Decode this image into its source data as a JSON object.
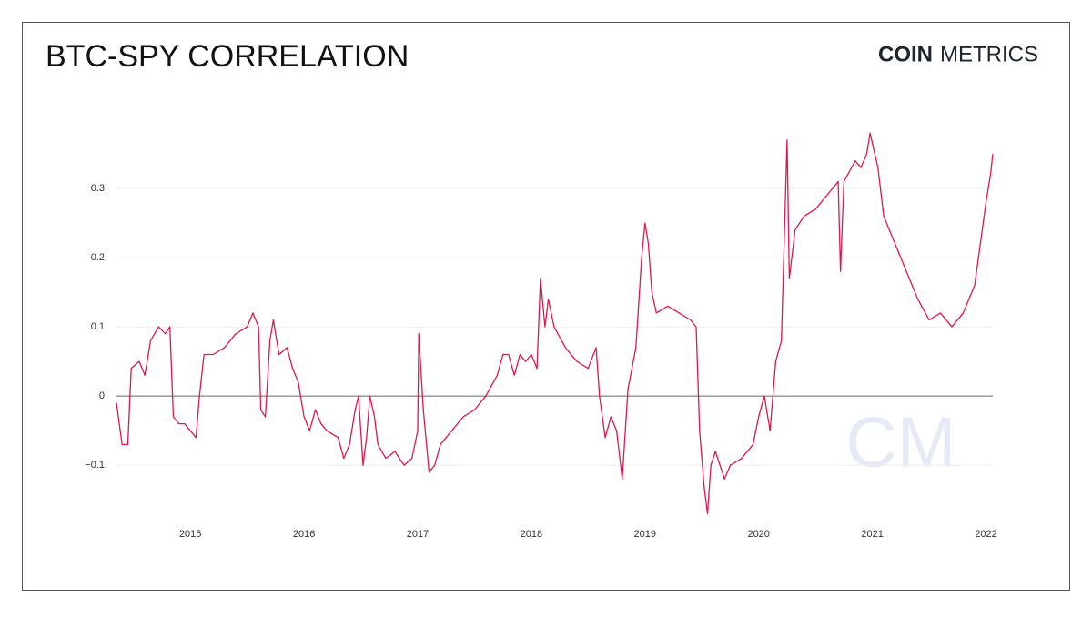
{
  "brand": {
    "bold": "COIN",
    "light": "METRICS",
    "watermark": "CM"
  },
  "chart_data": {
    "type": "line",
    "title": "BTC-SPY CORRELATION",
    "x": [
      2014.35,
      2014.4,
      2014.45,
      2014.48,
      2014.55,
      2014.6,
      2014.65,
      2014.72,
      2014.78,
      2014.82,
      2014.85,
      2014.9,
      2014.95,
      2015.0,
      2015.05,
      2015.08,
      2015.12,
      2015.2,
      2015.3,
      2015.4,
      2015.5,
      2015.55,
      2015.6,
      2015.62,
      2015.66,
      2015.7,
      2015.73,
      2015.78,
      2015.85,
      2015.9,
      2015.95,
      2016.0,
      2016.05,
      2016.1,
      2016.15,
      2016.2,
      2016.3,
      2016.35,
      2016.4,
      2016.45,
      2016.48,
      2016.52,
      2016.55,
      2016.58,
      2016.62,
      2016.65,
      2016.72,
      2016.8,
      2016.88,
      2016.95,
      2017.0,
      2017.01,
      2017.05,
      2017.1,
      2017.15,
      2017.2,
      2017.3,
      2017.4,
      2017.5,
      2017.6,
      2017.7,
      2017.75,
      2017.8,
      2017.85,
      2017.9,
      2017.95,
      2018.0,
      2018.05,
      2018.08,
      2018.12,
      2018.15,
      2018.2,
      2018.3,
      2018.4,
      2018.5,
      2018.57,
      2018.6,
      2018.65,
      2018.7,
      2018.75,
      2018.8,
      2018.85,
      2018.92,
      2018.97,
      2019.0,
      2019.03,
      2019.06,
      2019.1,
      2019.2,
      2019.3,
      2019.4,
      2019.45,
      2019.48,
      2019.52,
      2019.55,
      2019.58,
      2019.62,
      2019.7,
      2019.75,
      2019.85,
      2019.95,
      2020.0,
      2020.05,
      2020.1,
      2020.15,
      2020.2,
      2020.25,
      2020.27,
      2020.32,
      2020.4,
      2020.5,
      2020.6,
      2020.7,
      2020.72,
      2020.75,
      2020.85,
      2020.9,
      2020.95,
      2020.98,
      2021.05,
      2021.1,
      2021.2,
      2021.3,
      2021.4,
      2021.5,
      2021.6,
      2021.7,
      2021.8,
      2021.9,
      2021.95,
      2022.0,
      2022.04,
      2022.06
    ],
    "series": [
      {
        "color": "#e3154c",
        "values": [
          -0.01,
          -0.07,
          -0.07,
          0.04,
          0.05,
          0.03,
          0.08,
          0.1,
          0.09,
          0.1,
          -0.03,
          -0.04,
          -0.04,
          -0.05,
          -0.06,
          0.0,
          0.06,
          0.06,
          0.07,
          0.09,
          0.1,
          0.12,
          0.1,
          -0.02,
          -0.03,
          0.08,
          0.11,
          0.06,
          0.07,
          0.04,
          0.02,
          -0.03,
          -0.05,
          -0.02,
          -0.04,
          -0.05,
          -0.06,
          -0.09,
          -0.07,
          -0.02,
          0.0,
          -0.1,
          -0.06,
          0.0,
          -0.03,
          -0.07,
          -0.09,
          -0.08,
          -0.1,
          -0.09,
          -0.05,
          0.09,
          -0.02,
          -0.11,
          -0.1,
          -0.07,
          -0.05,
          -0.03,
          -0.02,
          0.0,
          0.03,
          0.06,
          0.06,
          0.03,
          0.06,
          0.05,
          0.06,
          0.04,
          0.17,
          0.1,
          0.14,
          0.1,
          0.07,
          0.05,
          0.04,
          0.07,
          0.0,
          -0.06,
          -0.03,
          -0.05,
          -0.12,
          0.01,
          0.07,
          0.2,
          0.25,
          0.22,
          0.15,
          0.12,
          0.13,
          0.12,
          0.11,
          0.1,
          -0.05,
          -0.13,
          -0.17,
          -0.1,
          -0.08,
          -0.12,
          -0.1,
          -0.09,
          -0.07,
          -0.03,
          0.0,
          -0.05,
          0.05,
          0.08,
          0.37,
          0.17,
          0.24,
          0.26,
          0.27,
          0.29,
          0.31,
          0.18,
          0.31,
          0.34,
          0.33,
          0.35,
          0.38,
          0.33,
          0.26,
          0.22,
          0.18,
          0.14,
          0.11,
          0.12,
          0.1,
          0.12,
          0.16,
          0.22,
          0.28,
          0.32,
          0.35
        ]
      }
    ],
    "xlim": [
      2014.35,
      2022.06
    ],
    "xticks": [
      2015,
      2016,
      2017,
      2018,
      2019,
      2020,
      2021,
      2022
    ],
    "ylim": [
      -0.18,
      0.4
    ],
    "yticks": [
      {
        "value": -0.1,
        "label": "−0.1"
      },
      0,
      0.1,
      0.2,
      0.3
    ],
    "grid": true
  }
}
